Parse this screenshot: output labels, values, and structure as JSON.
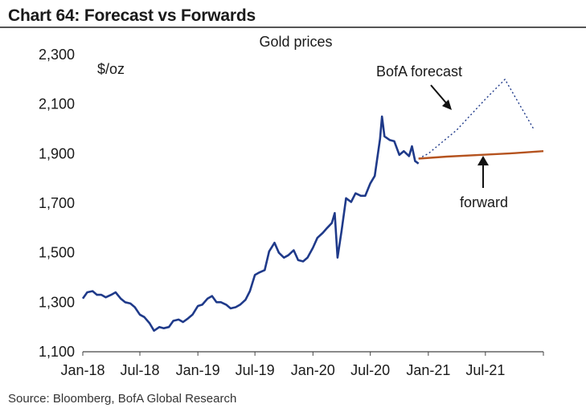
{
  "header": {
    "title": "Chart 64: Forecast vs Forwards"
  },
  "source": "Source: Bloomberg, BofA Global Research",
  "chart_data": {
    "type": "line",
    "title": "Gold prices",
    "ylabel": "$/oz",
    "xlabel": "",
    "ylim": [
      1100,
      2300
    ],
    "yticks": [
      1100,
      1300,
      1500,
      1700,
      1900,
      2100,
      2300
    ],
    "ytick_labels": [
      "1,100",
      "1,300",
      "1,500",
      "1,700",
      "1,900",
      "2,100",
      "2,300"
    ],
    "xlim": [
      "2018-01-01",
      "2022-01-01"
    ],
    "xticks": [
      "2018-01-01",
      "2018-07-01",
      "2019-01-01",
      "2019-07-01",
      "2020-01-01",
      "2020-07-01",
      "2021-01-01",
      "2021-07-01"
    ],
    "xtick_labels": [
      "Jan-18",
      "Jul-18",
      "Jan-19",
      "Jul-19",
      "Jan-20",
      "Jul-20",
      "Jan-21",
      "Jul-21"
    ],
    "grid": false,
    "annotations": [
      {
        "text": "BofA forecast",
        "series": "BofA forecast"
      },
      {
        "text": "forward",
        "series": "forward"
      }
    ],
    "series": [
      {
        "name": "",
        "style": "solid",
        "color": "#1f3a8a",
        "x": [
          "2018-01-01",
          "2018-01-15",
          "2018-02-01",
          "2018-02-15",
          "2018-03-01",
          "2018-03-15",
          "2018-04-01",
          "2018-04-15",
          "2018-05-01",
          "2018-05-15",
          "2018-06-01",
          "2018-06-15",
          "2018-07-01",
          "2018-07-15",
          "2018-08-01",
          "2018-08-15",
          "2018-09-01",
          "2018-09-15",
          "2018-10-01",
          "2018-10-15",
          "2018-11-01",
          "2018-11-15",
          "2018-12-01",
          "2018-12-15",
          "2019-01-01",
          "2019-01-15",
          "2019-02-01",
          "2019-02-15",
          "2019-03-01",
          "2019-03-15",
          "2019-04-01",
          "2019-04-15",
          "2019-05-01",
          "2019-05-15",
          "2019-06-01",
          "2019-06-15",
          "2019-07-01",
          "2019-07-15",
          "2019-08-01",
          "2019-08-15",
          "2019-09-01",
          "2019-09-15",
          "2019-10-01",
          "2019-10-15",
          "2019-11-01",
          "2019-11-15",
          "2019-12-01",
          "2019-12-15",
          "2020-01-01",
          "2020-01-15",
          "2020-02-01",
          "2020-02-15",
          "2020-03-01",
          "2020-03-10",
          "2020-03-19",
          "2020-04-01",
          "2020-04-15",
          "2020-05-01",
          "2020-05-15",
          "2020-06-01",
          "2020-06-15",
          "2020-07-01",
          "2020-07-15",
          "2020-08-01",
          "2020-08-07",
          "2020-08-15",
          "2020-09-01",
          "2020-09-15",
          "2020-10-01",
          "2020-10-15",
          "2020-11-01",
          "2020-11-10",
          "2020-11-20",
          "2020-12-01"
        ],
        "values": [
          1315,
          1340,
          1345,
          1330,
          1330,
          1320,
          1330,
          1340,
          1315,
          1300,
          1295,
          1280,
          1250,
          1240,
          1215,
          1185,
          1200,
          1195,
          1200,
          1225,
          1230,
          1220,
          1235,
          1250,
          1285,
          1290,
          1315,
          1325,
          1300,
          1300,
          1290,
          1275,
          1280,
          1290,
          1310,
          1345,
          1410,
          1420,
          1430,
          1505,
          1540,
          1500,
          1480,
          1490,
          1510,
          1470,
          1465,
          1480,
          1520,
          1560,
          1580,
          1600,
          1620,
          1660,
          1480,
          1590,
          1720,
          1705,
          1740,
          1730,
          1730,
          1780,
          1810,
          1960,
          2050,
          1970,
          1955,
          1950,
          1895,
          1910,
          1890,
          1930,
          1870,
          1860
        ]
      },
      {
        "name": "BofA forecast",
        "style": "dotted",
        "color": "#1f3a8a",
        "x": [
          "2020-12-01",
          "2021-01-01",
          "2021-04-01",
          "2021-07-01",
          "2021-09-01",
          "2021-12-01"
        ],
        "values": [
          1880,
          1900,
          1995,
          2120,
          2200,
          2000
        ]
      },
      {
        "name": "forward",
        "style": "solid",
        "color": "#b5531f",
        "x": [
          "2020-12-01",
          "2021-03-01",
          "2021-07-01",
          "2021-10-01",
          "2022-01-01"
        ],
        "values": [
          1880,
          1888,
          1896,
          1902,
          1910
        ]
      }
    ]
  }
}
